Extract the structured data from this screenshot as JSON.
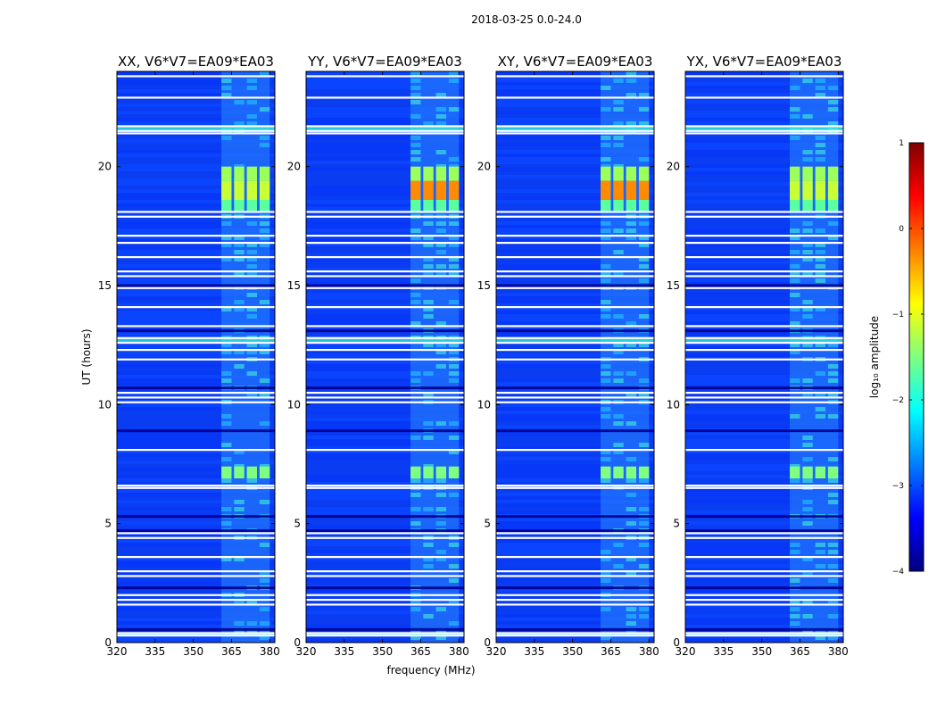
{
  "figure": {
    "suptitle": "2018-03-25 0.0-24.0"
  },
  "chart_data": {
    "type": "heatmap",
    "suptitle": "2018-03-25 0.0-24.0",
    "xlabel": "frequency (MHz)",
    "ylabel": "UT (hours)",
    "xlim": [
      320,
      382
    ],
    "ylim": [
      0,
      24
    ],
    "xticks": [
      320,
      335,
      350,
      365,
      380
    ],
    "yticks": [
      0,
      5,
      10,
      15,
      20
    ],
    "panels": [
      {
        "title": "XX, V6*V7=EA09*EA03"
      },
      {
        "title": "YY, V6*V7=EA09*EA03"
      },
      {
        "title": "XY, V6*V7=EA09*EA03"
      },
      {
        "title": "YX, V6*V7=EA09*EA03"
      }
    ],
    "colorbar": {
      "label": "log₁₀ amplitude",
      "range": [
        -4,
        1
      ],
      "ticks": [
        1,
        0,
        -1,
        -2,
        -3,
        -4
      ],
      "tick_labels": [
        "1",
        "0",
        "−1",
        "−2",
        "−3",
        "−4"
      ],
      "colormap": [
        "#00007f",
        "#0000ff",
        "#007fff",
        "#00ffff",
        "#7fff7f",
        "#ffff00",
        "#ff7f00",
        "#ff0000",
        "#7f0000"
      ]
    },
    "rfi_band_mhz": [
      361,
      380
    ],
    "rfi_channels_mhz": [
      [
        361,
        365
      ],
      [
        366,
        370
      ],
      [
        371,
        375
      ],
      [
        376,
        380
      ]
    ],
    "strong_rfi_hours": [
      [
        20.0,
        19.4
      ],
      [
        19.4,
        18.6
      ],
      [
        18.6,
        18.1
      ],
      [
        7.4,
        6.9
      ]
    ],
    "blank_rows_hours": [
      23.8,
      22.9,
      21.7,
      21.5,
      21.4,
      18.1,
      17.9,
      17.1,
      16.8,
      16.2,
      15.6,
      15.4,
      14.9,
      14.1,
      13.3,
      12.8,
      12.6,
      12.3,
      11.9,
      10.5,
      10.3,
      10.1,
      8.1,
      6.6,
      6.5,
      4.6,
      4.4,
      3.6,
      3.0,
      2.8,
      2.0,
      1.8,
      1.6,
      0.4,
      0.3
    ]
  }
}
